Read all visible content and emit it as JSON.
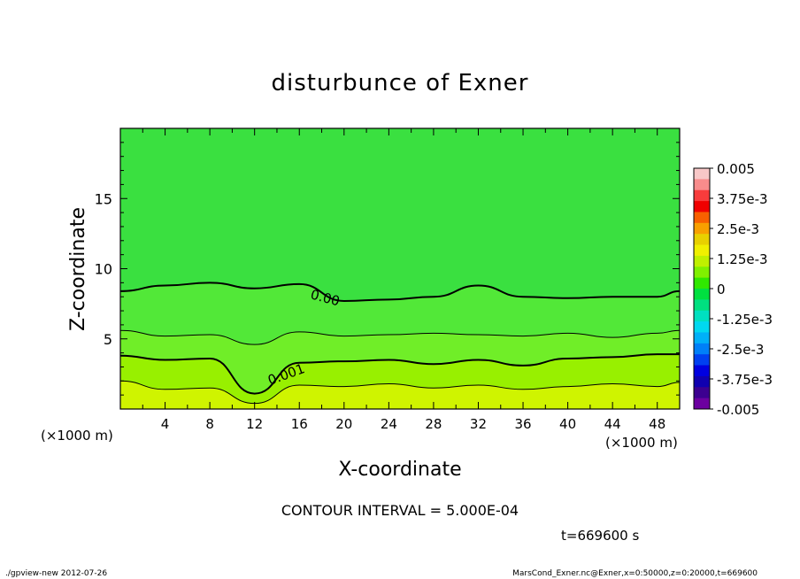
{
  "chart_data": {
    "type": "heatmap",
    "title": "disturbunce of Exner",
    "xlabel": "X-coordinate",
    "ylabel": "Z-coordinate",
    "x_unit": "(×1000 m)",
    "x_unit_right": "(×1000 m)",
    "xlim": [
      0,
      50
    ],
    "ylim": [
      0,
      20
    ],
    "x_ticks": [
      4,
      8,
      12,
      16,
      20,
      24,
      28,
      32,
      36,
      40,
      44,
      48
    ],
    "y_ticks": [
      5,
      10,
      15
    ],
    "colorbar": {
      "labels": [
        "0.005",
        "3.75e-3",
        "2.5e-3",
        "1.25e-3",
        "0",
        "-1.25e-3",
        "-2.5e-3",
        "-3.75e-3",
        "-0.005"
      ],
      "colors": [
        "#f8c8c8",
        "#f88c8c",
        "#f83c3c",
        "#f00000",
        "#f86000",
        "#f8a000",
        "#e8d000",
        "#f0f000",
        "#c0f000",
        "#80f000",
        "#30e800",
        "#00e040",
        "#00e080",
        "#00e0c0",
        "#00d8f0",
        "#00b0f8",
        "#0080f8",
        "#0040f0",
        "#0000e0",
        "#1000b0",
        "#3c0090",
        "#6c00a0"
      ]
    },
    "contours": [
      {
        "label": "0.00",
        "level": 0.0
      },
      {
        "label": "0.001",
        "level": 0.001
      }
    ],
    "contour_interval_text": "CONTOUR INTERVAL = 5.000E-04",
    "time_text": "t=669600 s",
    "levels_data": {
      "x": [
        0,
        4,
        8,
        12,
        16,
        20,
        24,
        28,
        32,
        36,
        40,
        44,
        48,
        50
      ],
      "z_zero": [
        8.4,
        8.8,
        9.0,
        8.6,
        8.9,
        7.7,
        7.8,
        8.0,
        8.8,
        8.0,
        7.9,
        8.0,
        8.0,
        8.4
      ],
      "z_0p0005": [
        5.6,
        5.2,
        5.3,
        4.6,
        5.5,
        5.2,
        5.3,
        5.4,
        5.3,
        5.2,
        5.4,
        5.1,
        5.4,
        5.6
      ],
      "z_0p001": [
        3.8,
        3.5,
        3.6,
        1.1,
        3.3,
        3.4,
        3.5,
        3.2,
        3.5,
        3.1,
        3.6,
        3.7,
        3.9,
        3.9
      ],
      "z_0p0015": [
        2.0,
        1.4,
        1.5,
        0.4,
        1.7,
        1.6,
        1.8,
        1.5,
        1.7,
        1.4,
        1.6,
        1.8,
        1.6,
        1.9
      ]
    }
  },
  "footer": {
    "left": "./gpview-new  2012-07-26",
    "right": "MarsCond_Exner.nc@Exner,x=0:50000,z=0:20000,t=669600"
  }
}
